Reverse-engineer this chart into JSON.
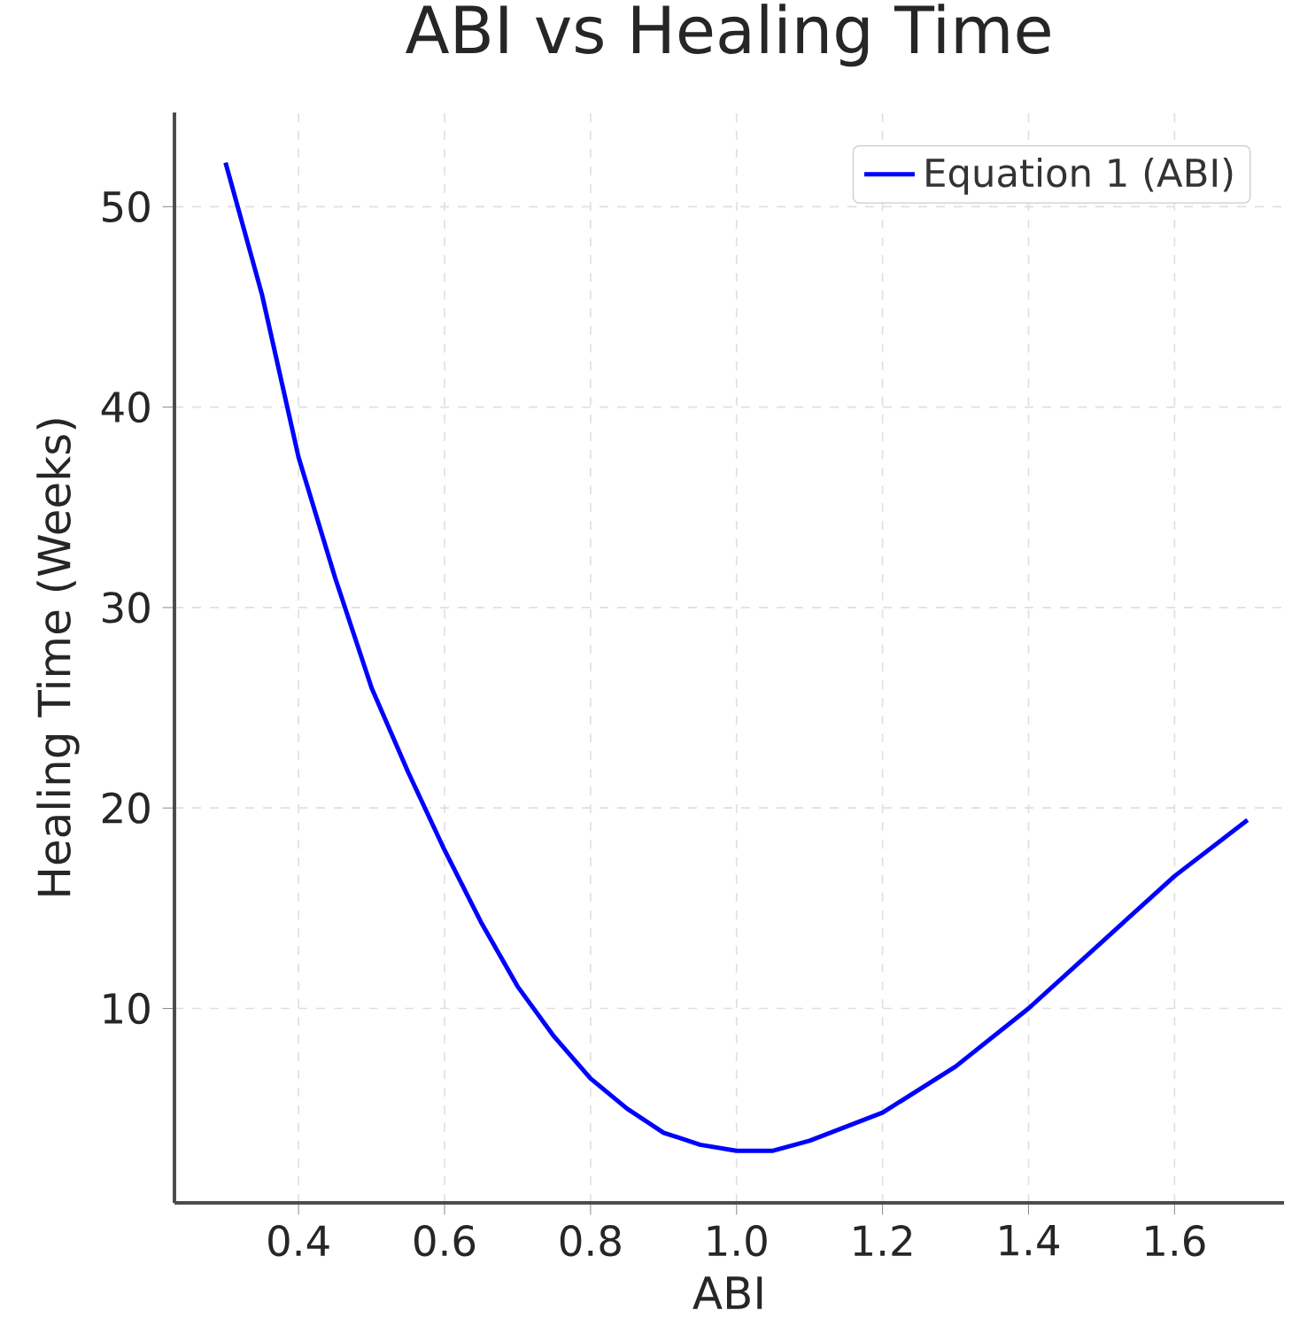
{
  "chart_data": {
    "type": "line",
    "title": "ABI vs Healing Time",
    "xlabel": "ABI",
    "ylabel": "Healing Time (Weeks)",
    "x": [
      0.3,
      0.35,
      0.4,
      0.45,
      0.5,
      0.55,
      0.6,
      0.65,
      0.7,
      0.75,
      0.8,
      0.85,
      0.9,
      0.95,
      1.0,
      1.05,
      1.1,
      1.2,
      1.3,
      1.4,
      1.5,
      1.6,
      1.7
    ],
    "series": [
      {
        "name": "Equation 1 (ABI)",
        "color": "#0000ff",
        "values": [
          52.2,
          45.6,
          37.5,
          31.5,
          26.0,
          21.8,
          17.9,
          14.3,
          11.1,
          8.6,
          6.5,
          5.0,
          3.8,
          3.2,
          2.9,
          2.9,
          3.4,
          4.8,
          7.1,
          10.0,
          13.3,
          16.6,
          19.4
        ]
      }
    ],
    "xlim": [
      0.23,
      1.75
    ],
    "ylim": [
      0.3,
      54.7
    ],
    "xticks": [
      {
        "value": 0.4,
        "label": "0.4"
      },
      {
        "value": 0.6,
        "label": "0.6"
      },
      {
        "value": 0.8,
        "label": "0.8"
      },
      {
        "value": 1.0,
        "label": "1.0"
      },
      {
        "value": 1.2,
        "label": "1.2"
      },
      {
        "value": 1.4,
        "label": "1.4"
      },
      {
        "value": 1.6,
        "label": "1.6"
      }
    ],
    "yticks": [
      10,
      20,
      30,
      40,
      50
    ],
    "grid": true,
    "legend": "top right"
  }
}
